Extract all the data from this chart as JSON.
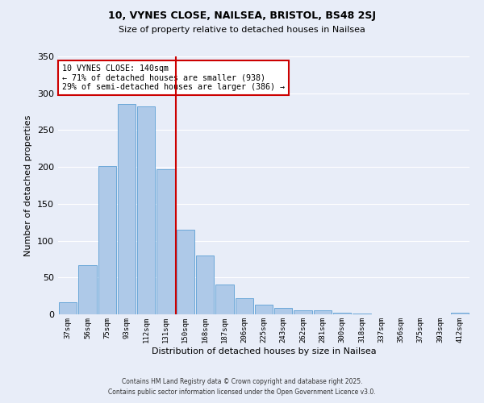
{
  "title_line1": "10, VYNES CLOSE, NAILSEA, BRISTOL, BS48 2SJ",
  "title_line2": "Size of property relative to detached houses in Nailsea",
  "xlabel": "Distribution of detached houses by size in Nailsea",
  "ylabel": "Number of detached properties",
  "bar_color": "#aec9e8",
  "bar_edge_color": "#5b9fd4",
  "bg_color": "#e8edf8",
  "grid_color": "#ffffff",
  "categories": [
    "37sqm",
    "56sqm",
    "75sqm",
    "93sqm",
    "112sqm",
    "131sqm",
    "150sqm",
    "168sqm",
    "187sqm",
    "206sqm",
    "225sqm",
    "243sqm",
    "262sqm",
    "281sqm",
    "300sqm",
    "318sqm",
    "337sqm",
    "356sqm",
    "375sqm",
    "393sqm",
    "412sqm"
  ],
  "values": [
    16,
    67,
    201,
    285,
    282,
    197,
    115,
    80,
    40,
    22,
    13,
    9,
    5,
    6,
    2,
    1,
    0,
    0,
    0,
    0,
    2
  ],
  "ylim": [
    0,
    350
  ],
  "yticks": [
    0,
    50,
    100,
    150,
    200,
    250,
    300,
    350
  ],
  "vline_x": 5.5,
  "vline_color": "#cc0000",
  "annotation_text": "10 VYNES CLOSE: 140sqm\n← 71% of detached houses are smaller (938)\n29% of semi-detached houses are larger (386) →",
  "annotation_box_color": "#ffffff",
  "annotation_box_edge": "#cc0000",
  "footer_line1": "Contains HM Land Registry data © Crown copyright and database right 2025.",
  "footer_line2": "Contains public sector information licensed under the Open Government Licence v3.0."
}
